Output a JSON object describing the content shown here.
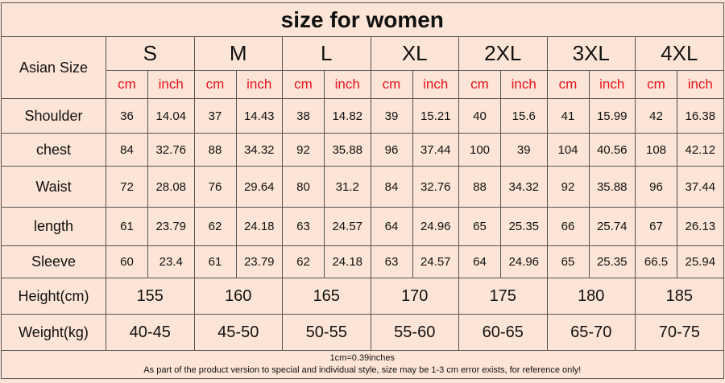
{
  "title": "size for women",
  "header": {
    "label": "Asian Size",
    "sizes": [
      "S",
      "M",
      "L",
      "XL",
      "2XL",
      "3XL",
      "4XL"
    ],
    "units": [
      "cm",
      "inch"
    ]
  },
  "rows": [
    {
      "label": "Shoulder",
      "values": [
        36,
        14.04,
        37,
        14.43,
        38,
        14.82,
        39,
        15.21,
        40,
        15.6,
        41,
        15.99,
        42,
        16.38
      ]
    },
    {
      "label": "chest",
      "values": [
        84,
        32.76,
        88,
        34.32,
        92,
        35.88,
        96,
        37.44,
        100,
        39,
        104,
        40.56,
        108,
        42.12
      ]
    },
    {
      "label": "Waist",
      "values": [
        72,
        28.08,
        76,
        29.64,
        80,
        31.2,
        84,
        32.76,
        88,
        34.32,
        92,
        35.88,
        96,
        37.44
      ]
    },
    {
      "label": "length",
      "values": [
        61,
        23.79,
        62,
        24.18,
        63,
        24.57,
        64,
        24.96,
        65,
        25.35,
        66,
        25.74,
        67,
        26.13
      ]
    },
    {
      "label": "Sleeve",
      "values": [
        60,
        23.4,
        61,
        23.79,
        62,
        24.18,
        63,
        24.57,
        64,
        24.96,
        65,
        25.35,
        66.5,
        25.94
      ]
    }
  ],
  "height": {
    "label": "Height(cm)",
    "values": [
      155,
      160,
      165,
      170,
      175,
      180,
      185
    ]
  },
  "weight": {
    "label": "Weight(kg)",
    "values": [
      "40-45",
      "45-50",
      "50-55",
      "55-60",
      "60-65",
      "65-70",
      "70-75"
    ]
  },
  "notes": [
    "1cm=0.39inches",
    "As part of the product version to special and individual style, size may be 1-3 cm error exists, for reference only!"
  ]
}
